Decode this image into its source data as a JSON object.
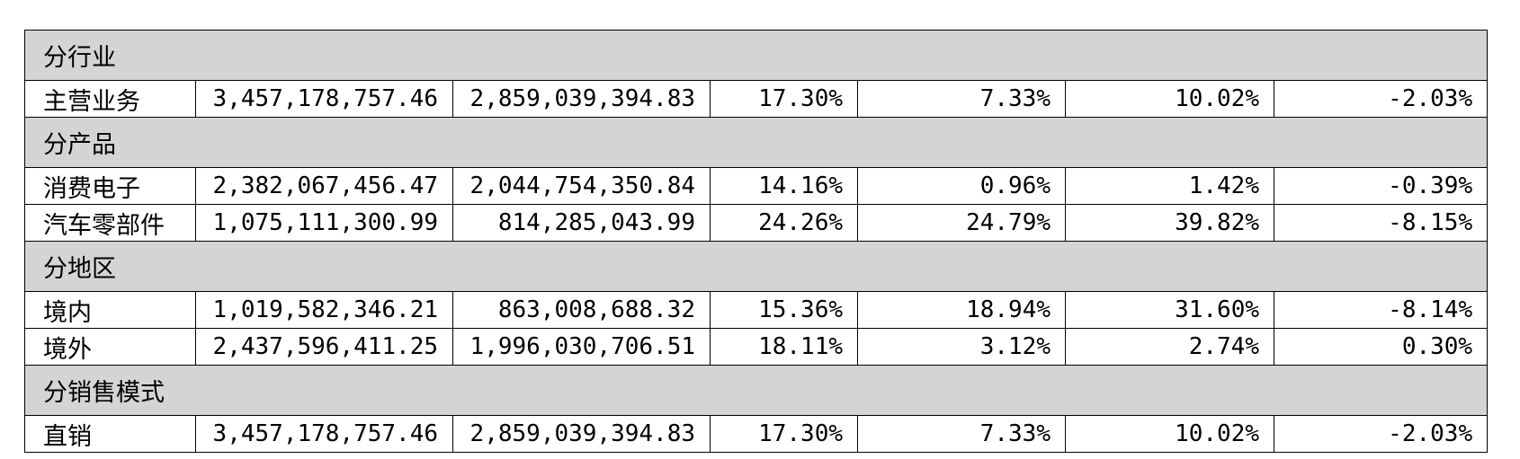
{
  "table": {
    "sections": [
      {
        "title": "分行业",
        "rows": [
          {
            "label": "主营业务",
            "cells": [
              "3,457,178,757.46",
              "2,859,039,394.83",
              "17.30%",
              "7.33%",
              "10.02%",
              "-2.03%"
            ]
          }
        ]
      },
      {
        "title": "分产品",
        "rows": [
          {
            "label": "消费电子",
            "cells": [
              "2,382,067,456.47",
              "2,044,754,350.84",
              "14.16%",
              "0.96%",
              "1.42%",
              "-0.39%"
            ]
          },
          {
            "label": "汽车零部件",
            "cells": [
              "1,075,111,300.99",
              "814,285,043.99",
              "24.26%",
              "24.79%",
              "39.82%",
              "-8.15%"
            ]
          }
        ]
      },
      {
        "title": "分地区",
        "rows": [
          {
            "label": "境内",
            "cells": [
              "1,019,582,346.21",
              "863,008,688.32",
              "15.36%",
              "18.94%",
              "31.60%",
              "-8.14%"
            ]
          },
          {
            "label": "境外",
            "cells": [
              "2,437,596,411.25",
              "1,996,030,706.51",
              "18.11%",
              "3.12%",
              "2.74%",
              "0.30%"
            ]
          }
        ]
      },
      {
        "title": "分销售模式",
        "rows": [
          {
            "label": "直销",
            "cells": [
              "3,457,178,757.46",
              "2,859,039,394.83",
              "17.30%",
              "7.33%",
              "10.02%",
              "-2.03%"
            ]
          }
        ]
      }
    ]
  }
}
